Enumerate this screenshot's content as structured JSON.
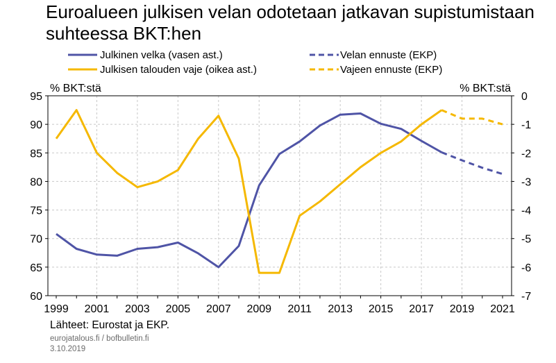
{
  "chart_data": {
    "type": "line",
    "title": "Euroalueen julkisen velan odotetaan jatkavan supistumistaan suhteessa BKT:hen",
    "ylabel_left": "% BKT:stä",
    "ylabel_right": "% BKT:stä",
    "x_ticks": [
      "1999",
      "2001",
      "2003",
      "2005",
      "2007",
      "2009",
      "2011",
      "2013",
      "2015",
      "2017",
      "2019",
      "2021"
    ],
    "xlim": [
      1999,
      2021
    ],
    "ylim_left": [
      60,
      95
    ],
    "ylim_right": [
      -7,
      0
    ],
    "y_ticks_left": [
      "95",
      "90",
      "85",
      "80",
      "75",
      "70",
      "65",
      "60"
    ],
    "y_ticks_right": [
      "0",
      "-1",
      "-2",
      "-3",
      "-4",
      "-5",
      "-6",
      "-7"
    ],
    "grid": true,
    "legend_position": "top",
    "series": [
      {
        "name": "Julkinen velka (vasen ast.)",
        "axis": "left",
        "color": "#4f54a6",
        "dashed": false,
        "x": [
          1999,
          2000,
          2001,
          2002,
          2003,
          2004,
          2005,
          2006,
          2007,
          2008,
          2009,
          2010,
          2011,
          2012,
          2013,
          2014,
          2015,
          2016,
          2017,
          2018
        ],
        "values": [
          70.8,
          68.2,
          67.2,
          67.0,
          68.2,
          68.5,
          69.3,
          67.4,
          65.0,
          68.7,
          79.3,
          84.8,
          87.0,
          89.8,
          91.7,
          91.9,
          90.1,
          89.2,
          87.1,
          85.1
        ]
      },
      {
        "name": "Julkisen talouden vaje (oikea ast.)",
        "axis": "right",
        "color": "#f5b800",
        "dashed": false,
        "x": [
          1999,
          2000,
          2001,
          2002,
          2003,
          2004,
          2005,
          2006,
          2007,
          2008,
          2009,
          2010,
          2011,
          2012,
          2013,
          2014,
          2015,
          2016,
          2017,
          2018
        ],
        "values": [
          -1.5,
          -0.5,
          -2.0,
          -2.7,
          -3.2,
          -3.0,
          -2.6,
          -1.5,
          -0.7,
          -2.2,
          -6.2,
          -6.2,
          -4.2,
          -3.7,
          -3.1,
          -2.5,
          -2.0,
          -1.6,
          -1.0,
          -0.5
        ]
      },
      {
        "name": "Velan ennuste (EKP)",
        "axis": "left",
        "color": "#4f54a6",
        "dashed": true,
        "x": [
          2018,
          2019,
          2020,
          2021
        ],
        "values": [
          85.1,
          83.7,
          82.4,
          81.3
        ]
      },
      {
        "name": "Vajeen ennuste (EKP)",
        "axis": "right",
        "color": "#f5b800",
        "dashed": true,
        "x": [
          2018,
          2019,
          2020,
          2021
        ],
        "values": [
          -0.5,
          -0.8,
          -0.8,
          -1.0
        ]
      }
    ]
  },
  "footer": {
    "sources": "Lähteet: Eurostat ja EKP.",
    "site": "eurojatalous.fi  / bofbulletin.fi",
    "date": "3.10.2019"
  }
}
